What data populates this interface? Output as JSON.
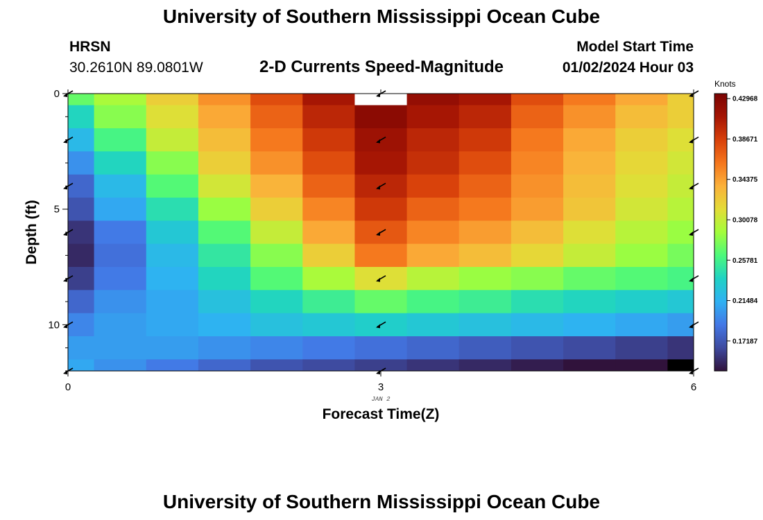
{
  "page": {
    "title": "University of Southern Mississippi Ocean Cube",
    "title_bottom": "University of Southern Mississippi Ocean Cube",
    "station": "HRSN",
    "coords": "30.2610N  89.0801W",
    "subtitle": "2-D Currents Speed-Magnitude",
    "model_label": "Model Start Time",
    "model_time": "01/02/2024 Hour 03"
  },
  "colors": {
    "scale": [
      "#30123b",
      "#3e4a9f",
      "#4378e6",
      "#2fb1f3",
      "#1fd2c4",
      "#4cf97b",
      "#a3fd3b",
      "#e3dc37",
      "#fbb13a",
      "#f5761c",
      "#d8400a",
      "#a51504",
      "#7a0403"
    ],
    "missing": "#ffffff",
    "nodata": "#000000"
  },
  "chart_data": {
    "type": "heatmap",
    "title": "2-D Currents Speed-Magnitude",
    "xlabel": "Forecast Time(Z)",
    "ylabel": "Depth (ft)",
    "xlim": [
      0,
      6
    ],
    "ylim": [
      0,
      12
    ],
    "x_ticks": [
      "0",
      "3",
      "6"
    ],
    "y_ticks": [
      "0",
      "5",
      "10"
    ],
    "date_label": "JAN 2",
    "colorbar": {
      "label": "Knots",
      "min": 0.14,
      "max": 0.435,
      "ticks": [
        "0.42968",
        "0.38671",
        "0.34375",
        "0.30078",
        "0.25781",
        "0.21484",
        "0.17187"
      ]
    },
    "columns": 12,
    "depths_ft": [
      0,
      1,
      2,
      3,
      4,
      5,
      6,
      7,
      8,
      9,
      10,
      11,
      12
    ],
    "values": [
      [
        0.27,
        0.29,
        0.32,
        0.35,
        0.38,
        0.41,
        null,
        0.42,
        0.41,
        0.38,
        0.36,
        0.34,
        0.32
      ],
      [
        0.24,
        0.28,
        0.31,
        0.34,
        0.37,
        0.4,
        0.425,
        0.41,
        0.4,
        0.37,
        0.35,
        0.33,
        0.32
      ],
      [
        0.22,
        0.26,
        0.3,
        0.33,
        0.36,
        0.39,
        0.415,
        0.4,
        0.39,
        0.36,
        0.34,
        0.32,
        0.31
      ],
      [
        0.2,
        0.24,
        0.28,
        0.32,
        0.35,
        0.38,
        0.41,
        0.395,
        0.38,
        0.355,
        0.335,
        0.315,
        0.305
      ],
      [
        0.18,
        0.22,
        0.265,
        0.305,
        0.335,
        0.37,
        0.4,
        0.385,
        0.37,
        0.35,
        0.33,
        0.31,
        0.3
      ],
      [
        0.17,
        0.21,
        0.245,
        0.285,
        0.32,
        0.355,
        0.39,
        0.37,
        0.36,
        0.345,
        0.325,
        0.305,
        0.295
      ],
      [
        0.155,
        0.19,
        0.23,
        0.265,
        0.3,
        0.34,
        0.375,
        0.355,
        0.345,
        0.33,
        0.31,
        0.295,
        0.285
      ],
      [
        0.15,
        0.185,
        0.22,
        0.25,
        0.28,
        0.32,
        0.36,
        0.34,
        0.33,
        0.315,
        0.3,
        0.285,
        0.275
      ],
      [
        0.16,
        0.19,
        0.215,
        0.24,
        0.265,
        0.29,
        0.31,
        0.295,
        0.285,
        0.28,
        0.27,
        0.265,
        0.26
      ],
      [
        0.18,
        0.2,
        0.21,
        0.225,
        0.24,
        0.255,
        0.27,
        0.26,
        0.255,
        0.245,
        0.24,
        0.235,
        0.23
      ],
      [
        0.195,
        0.205,
        0.21,
        0.215,
        0.225,
        0.23,
        0.235,
        0.23,
        0.225,
        0.22,
        0.215,
        0.21,
        0.205
      ],
      [
        0.205,
        0.205,
        0.205,
        0.2,
        0.195,
        0.19,
        0.185,
        0.18,
        0.175,
        0.17,
        0.165,
        0.16,
        0.155
      ],
      [
        0.21,
        0.2,
        0.19,
        0.18,
        0.17,
        0.165,
        0.16,
        0.155,
        0.15,
        0.145,
        0.14,
        0.14,
        null
      ]
    ],
    "arrow_depths_ft": [
      0,
      2,
      4,
      6,
      8,
      10,
      12
    ],
    "arrow_times": [
      0,
      3,
      6
    ]
  }
}
